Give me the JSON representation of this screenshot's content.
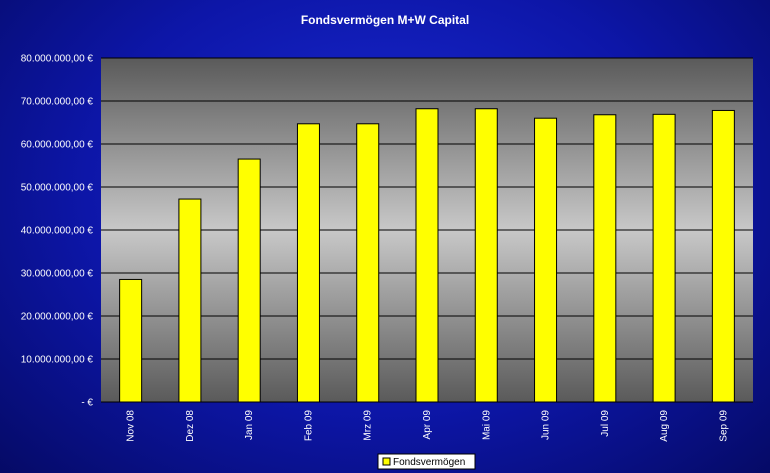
{
  "chart_data": {
    "type": "bar",
    "title": "Fondsvermögen M+W Capital",
    "categories": [
      "Nov 08",
      "Dez 08",
      "Jan 09",
      "Feb 09",
      "Mrz 09",
      "Apr 09",
      "Mai 09",
      "Jun 09",
      "Jul 09",
      "Aug 09",
      "Sep 09"
    ],
    "series": [
      {
        "name": "Fondsvermögen",
        "values": [
          28500000,
          47200000,
          56500000,
          64700000,
          64700000,
          68200000,
          68200000,
          66000000,
          66800000,
          66900000,
          67800000
        ]
      }
    ],
    "ylim": [
      0,
      80000000
    ],
    "y_ticks": [
      0,
      10000000,
      20000000,
      30000000,
      40000000,
      50000000,
      60000000,
      70000000,
      80000000
    ],
    "y_tick_labels": [
      "-   €",
      "10.000.000,00 €",
      "20.000.000,00 €",
      "30.000.000,00 €",
      "40.000.000,00 €",
      "50.000.000,00 €",
      "60.000.000,00 €",
      "70.000.000,00 €",
      "80.000.000,00 €"
    ],
    "xlabel": "",
    "ylabel": "",
    "grid": true,
    "legend_position": "bottom-center",
    "colors": {
      "bar_fill": "#ffff00",
      "bar_stroke": "#000000",
      "background": "#0d16a8",
      "plot_area_mid": "#c8c8c8",
      "plot_area_edge": "#5a5a5a",
      "text": "#ffffff"
    }
  }
}
